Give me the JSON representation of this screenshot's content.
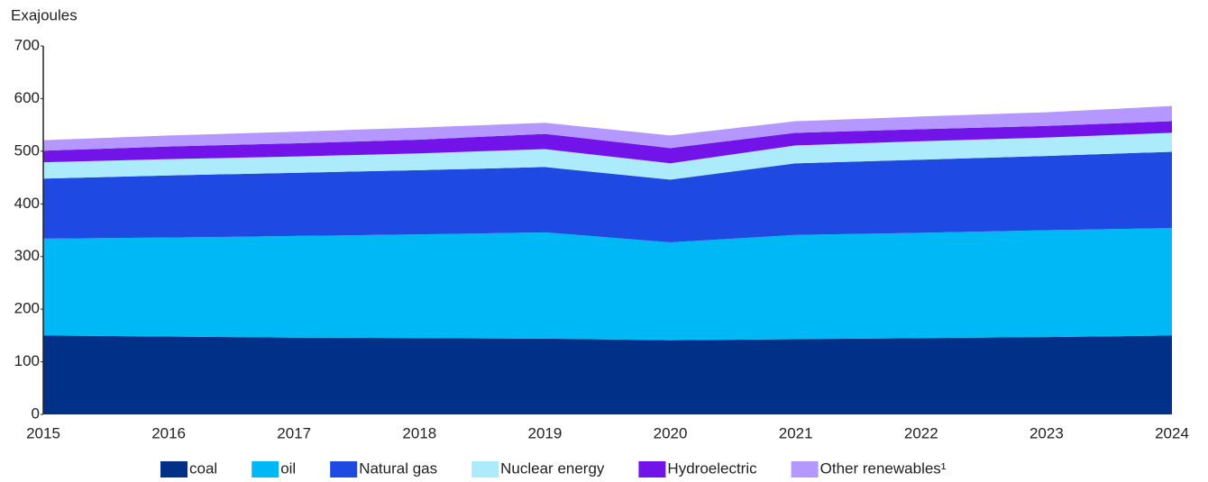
{
  "chart_data": {
    "type": "stacked_area",
    "y_axis_label": "Exajoules",
    "categories": [
      "2015",
      "2016",
      "2017",
      "2018",
      "2019",
      "2020",
      "2021",
      "2022",
      "2023",
      "2024"
    ],
    "series": [
      {
        "name": "coal",
        "color": "#003087",
        "values": [
          150,
          148,
          146,
          145,
          144,
          141,
          143,
          145,
          147,
          150
        ]
      },
      {
        "name": "oil",
        "color": "#00b8f5",
        "values": [
          184,
          188,
          193,
          197,
          202,
          186,
          198,
          200,
          203,
          204
        ]
      },
      {
        "name": "Natural gas",
        "color": "#1e49e2",
        "values": [
          114,
          118,
          120,
          122,
          124,
          119,
          136,
          139,
          141,
          145
        ]
      },
      {
        "name": "Nuclear energy",
        "color": "#acebfc",
        "values": [
          31,
          31,
          31,
          32,
          34,
          31,
          34,
          35,
          35,
          36
        ]
      },
      {
        "name": "Hydroelectric",
        "color": "#7213ea",
        "values": [
          22,
          24,
          25,
          26,
          29,
          29,
          24,
          23,
          22,
          22
        ]
      },
      {
        "name": "Other renewables¹",
        "color": "#b497ff",
        "values": [
          20,
          21,
          22,
          23,
          21,
          24,
          22,
          24,
          26,
          29
        ]
      }
    ],
    "ylim": [
      0,
      700
    ],
    "yticks": [
      0,
      100,
      200,
      300,
      400,
      500,
      600,
      700
    ],
    "grid": false
  }
}
